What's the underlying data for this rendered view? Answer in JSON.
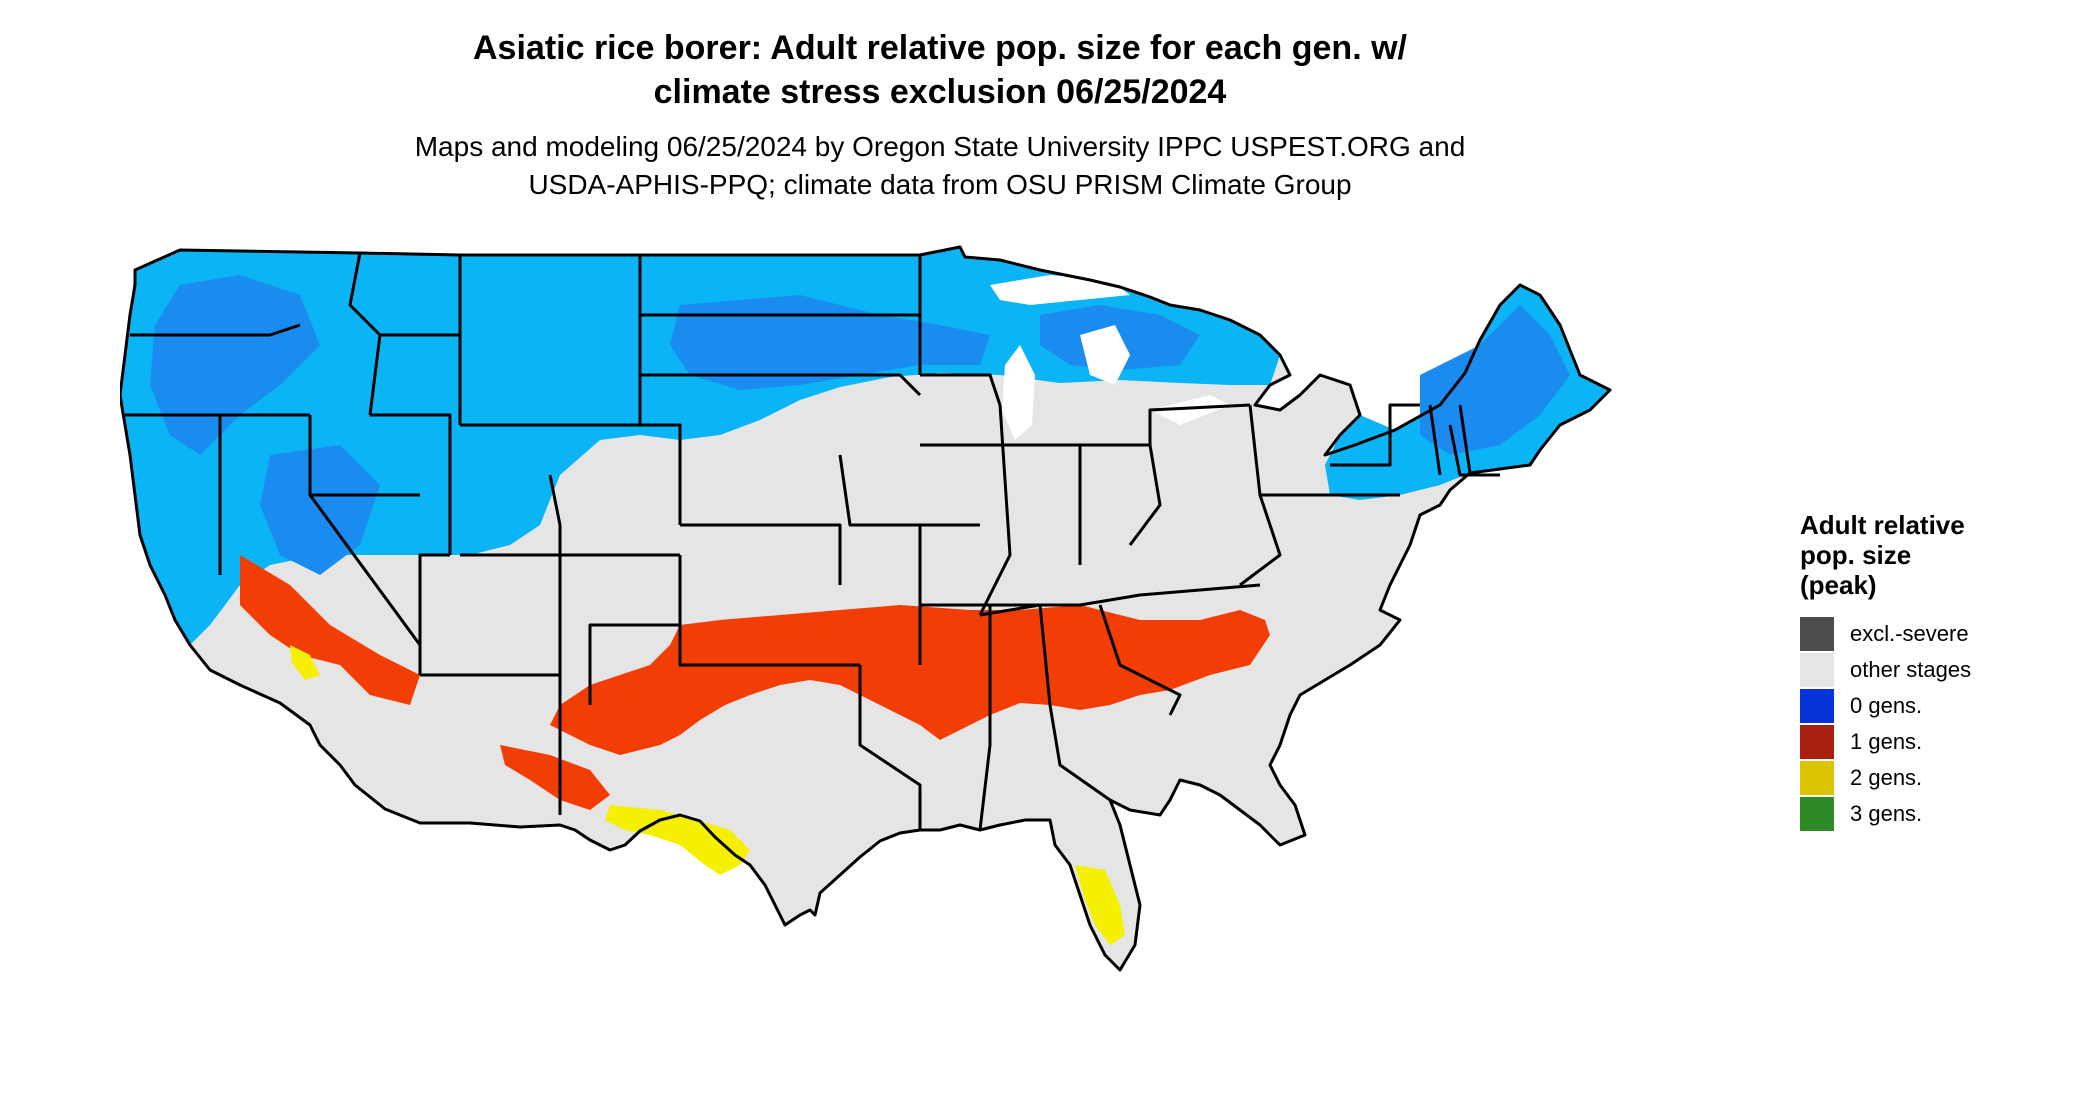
{
  "title": {
    "line1": "Asiatic rice borer: Adult relative pop. size for each gen. w/",
    "line2": "climate stress exclusion 06/25/2024"
  },
  "subtitle": {
    "line1": "Maps and modeling 06/25/2024 by Oregon State University IPPC USPEST.ORG and",
    "line2": "USDA-APHIS-PPQ; climate data from OSU PRISM Climate Group"
  },
  "legend": {
    "title_line1": "Adult relative",
    "title_line2": "pop. size",
    "title_line3": "(peak)",
    "items": [
      {
        "label": "excl.-severe",
        "color": "#4d4d4d"
      },
      {
        "label": "other stages",
        "color": "#e5e5e5"
      },
      {
        "label": "0 gens.",
        "color": "#0533d8"
      },
      {
        "label": "1 gens.",
        "color": "#a81f0f"
      },
      {
        "label": "2 gens.",
        "color": "#dcc400"
      },
      {
        "label": "3 gens.",
        "color": "#2d8a26"
      }
    ]
  },
  "map_colors": {
    "land": "#e5e5e5",
    "light_blue": "#0ab4f5",
    "mid_blue": "#1a8cf0",
    "dark_blue": "#0a5ce6",
    "orange_red": "#f23d05",
    "yellow": "#f5f000",
    "state_border": "#000000"
  }
}
